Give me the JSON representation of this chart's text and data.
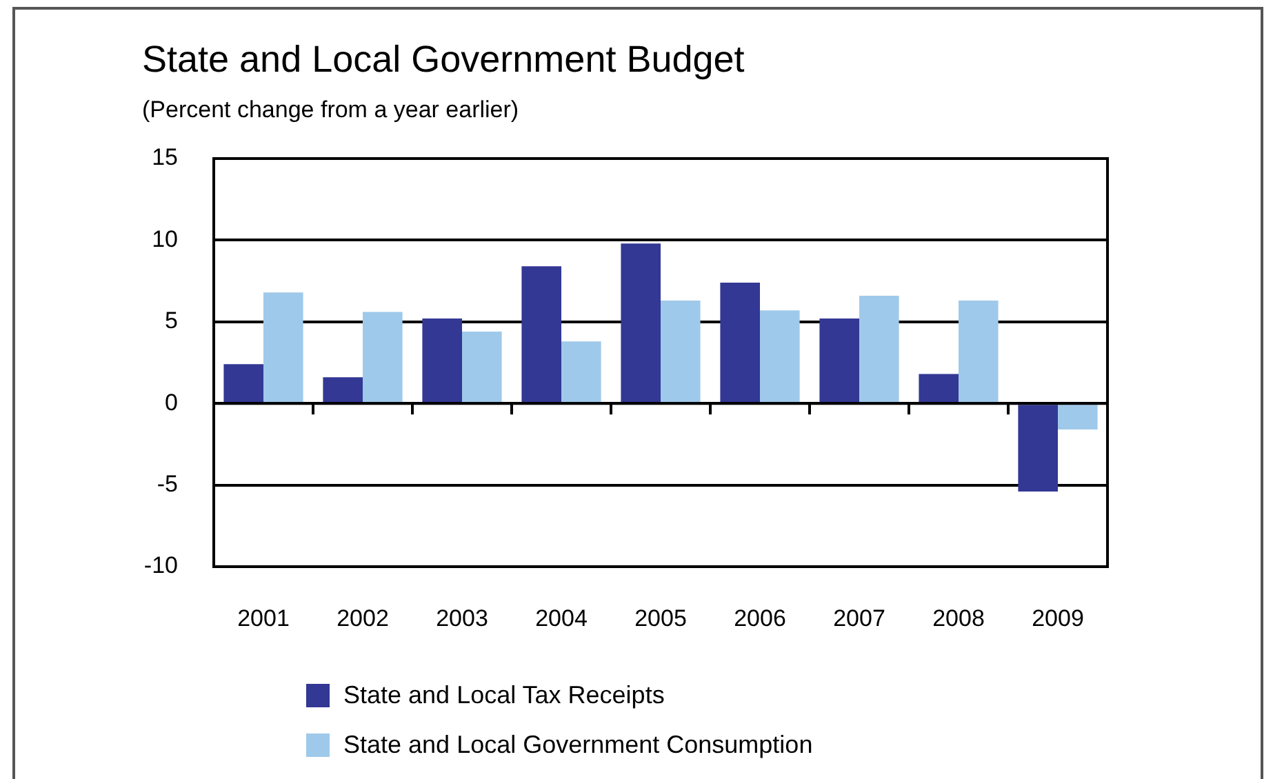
{
  "chart_data": {
    "type": "bar",
    "title": "State and Local Government Budget",
    "subtitle": "(Percent change from a year earlier)",
    "categories": [
      "2001",
      "2002",
      "2003",
      "2004",
      "2005",
      "2006",
      "2007",
      "2008",
      "2009"
    ],
    "series": [
      {
        "name": "State and Local Tax Receipts",
        "color": "#333894",
        "values": [
          2.4,
          1.6,
          5.2,
          8.4,
          9.8,
          7.4,
          5.2,
          1.8,
          -5.4
        ]
      },
      {
        "name": "State and Local Government Consumption",
        "color": "#9fc9ea",
        "values": [
          6.8,
          5.6,
          4.4,
          3.8,
          6.3,
          5.7,
          6.6,
          6.3,
          -1.6
        ]
      }
    ],
    "ylim": [
      -10,
      15
    ],
    "yticks": [
      -10,
      -5,
      0,
      5,
      10,
      15
    ],
    "grid": "y",
    "legend": "bottom"
  }
}
